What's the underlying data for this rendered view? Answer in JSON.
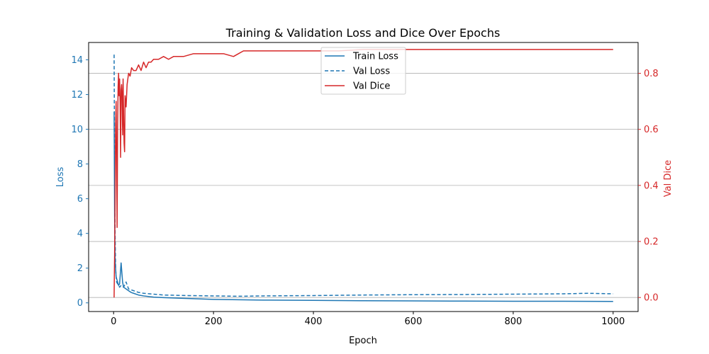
{
  "chart_data": {
    "type": "line",
    "title": "Training & Validation Loss and Dice Over Epochs",
    "xlabel": "Epoch",
    "ylabel_left": "Loss",
    "ylabel_right": "Val Dice",
    "xlim": [
      -50,
      1050
    ],
    "ylim_left": [
      -0.5,
      15.0
    ],
    "ylim_right": [
      -0.05,
      0.91
    ],
    "x_ticks": [
      0,
      200,
      400,
      600,
      800,
      1000
    ],
    "y_ticks_left": [
      0,
      2,
      4,
      6,
      8,
      10,
      12,
      14
    ],
    "y_ticks_right": [
      0.0,
      0.2,
      0.4,
      0.6,
      0.8
    ],
    "grid": "horizontal, right axis",
    "legend_position": "upper-center",
    "colors": {
      "loss": "#1f77b4",
      "dice": "#d62728",
      "grid": "#b0b0b0"
    },
    "series": [
      {
        "name": "Train Loss",
        "axis": "left",
        "style": "solid",
        "x": [
          1,
          2,
          3,
          5,
          8,
          10,
          12,
          15,
          18,
          20,
          25,
          30,
          35,
          40,
          50,
          60,
          80,
          100,
          150,
          200,
          250,
          300,
          400,
          500,
          600,
          700,
          800,
          900,
          1000
        ],
        "values": [
          11.0,
          5.0,
          2.5,
          1.5,
          1.2,
          1.0,
          1.1,
          2.3,
          1.2,
          0.9,
          0.8,
          0.7,
          0.6,
          0.55,
          0.45,
          0.4,
          0.33,
          0.3,
          0.25,
          0.2,
          0.18,
          0.16,
          0.14,
          0.12,
          0.11,
          0.1,
          0.09,
          0.09,
          0.08
        ]
      },
      {
        "name": "Val Loss",
        "axis": "left",
        "style": "dashed",
        "x": [
          1,
          2,
          3,
          4,
          5,
          6,
          8,
          10,
          12,
          15,
          20,
          25,
          30,
          40,
          50,
          60,
          80,
          100,
          150,
          200,
          250,
          300,
          400,
          500,
          600,
          700,
          800,
          900,
          950,
          1000
        ],
        "values": [
          14.3,
          8.0,
          4.0,
          2.0,
          1.5,
          1.2,
          1.1,
          1.0,
          0.9,
          1.0,
          0.9,
          1.2,
          0.8,
          0.7,
          0.6,
          0.55,
          0.5,
          0.45,
          0.42,
          0.4,
          0.38,
          0.4,
          0.42,
          0.45,
          0.47,
          0.48,
          0.5,
          0.52,
          0.55,
          0.52
        ]
      },
      {
        "name": "Val Dice",
        "axis": "right",
        "style": "solid",
        "x": [
          1,
          2,
          3,
          4,
          5,
          6,
          7,
          8,
          9,
          10,
          11,
          12,
          13,
          14,
          15,
          16,
          17,
          18,
          19,
          20,
          21,
          22,
          23,
          24,
          25,
          27,
          30,
          33,
          36,
          40,
          45,
          50,
          55,
          60,
          65,
          70,
          75,
          80,
          90,
          100,
          110,
          120,
          140,
          160,
          180,
          200,
          220,
          240,
          250,
          260,
          280,
          300,
          350,
          400,
          450,
          500,
          600,
          700,
          800,
          900,
          1000
        ],
        "values": [
          0.0,
          0.15,
          0.35,
          0.6,
          0.7,
          0.5,
          0.25,
          0.6,
          0.75,
          0.8,
          0.72,
          0.78,
          0.7,
          0.5,
          0.74,
          0.76,
          0.72,
          0.58,
          0.78,
          0.65,
          0.55,
          0.52,
          0.72,
          0.7,
          0.68,
          0.76,
          0.8,
          0.79,
          0.82,
          0.81,
          0.81,
          0.83,
          0.81,
          0.84,
          0.82,
          0.84,
          0.84,
          0.85,
          0.85,
          0.86,
          0.85,
          0.86,
          0.86,
          0.87,
          0.87,
          0.87,
          0.87,
          0.86,
          0.87,
          0.88,
          0.88,
          0.88,
          0.88,
          0.88,
          0.88,
          0.885,
          0.885,
          0.885,
          0.885,
          0.885,
          0.885
        ]
      }
    ]
  }
}
